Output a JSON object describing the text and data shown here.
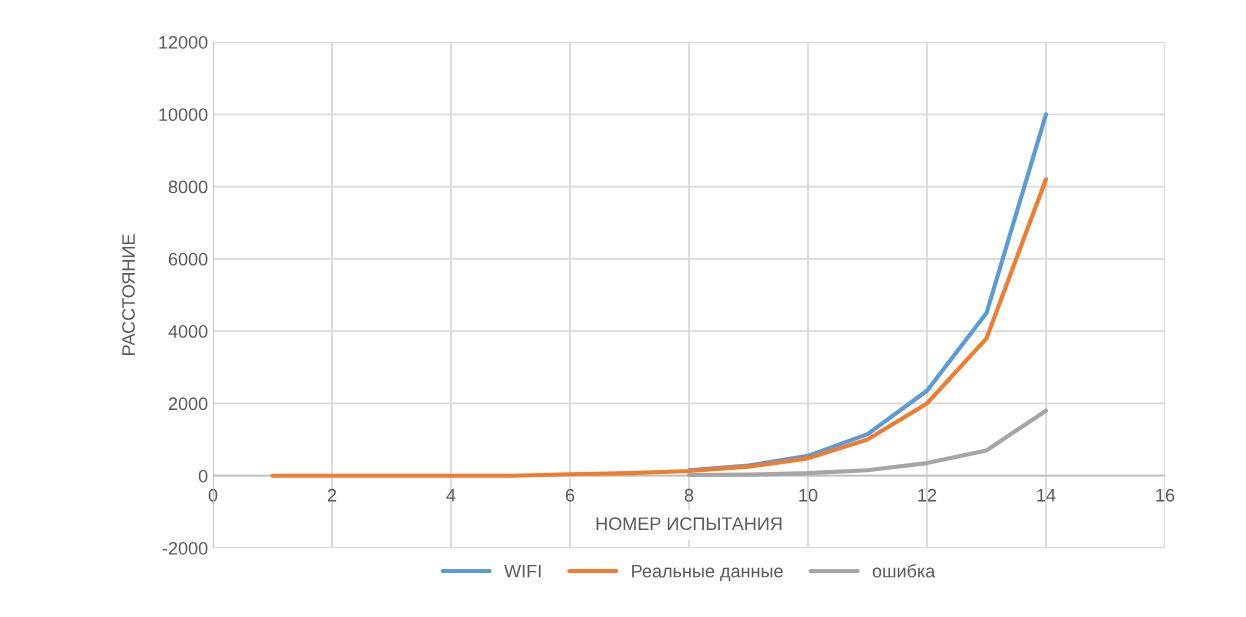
{
  "chart_data": {
    "type": "line",
    "xlabel": "НОМЕР ИСПЫТАНИЯ",
    "ylabel": "РАССТОЯНИЕ",
    "x": [
      1,
      2,
      3,
      4,
      5,
      6,
      7,
      8,
      9,
      10,
      11,
      12,
      13,
      14
    ],
    "series": [
      {
        "name": "WIFI",
        "color": "#5b9bd5",
        "values": [
          null,
          null,
          null,
          null,
          null,
          null,
          null,
          150,
          280,
          550,
          1150,
          2350,
          4500,
          10000
        ]
      },
      {
        "name": "Реальные данные",
        "color": "#ed7d31",
        "values": [
          0,
          0,
          0,
          0,
          0,
          40,
          70,
          130,
          250,
          480,
          1000,
          2000,
          3800,
          8200
        ]
      },
      {
        "name": "ошибка",
        "color": "#a5a5a5",
        "values": [
          null,
          null,
          null,
          null,
          null,
          null,
          null,
          20,
          30,
          70,
          150,
          350,
          700,
          1800
        ]
      }
    ],
    "xlim": [
      0,
      16
    ],
    "xticks": [
      0,
      2,
      4,
      6,
      8,
      10,
      12,
      14,
      16
    ],
    "ylim": [
      -2000,
      12000
    ],
    "yticks": [
      -2000,
      0,
      2000,
      4000,
      6000,
      8000,
      10000,
      12000
    ],
    "grid": true,
    "legend": "bottom",
    "marker": "none",
    "line_style": "solid"
  }
}
